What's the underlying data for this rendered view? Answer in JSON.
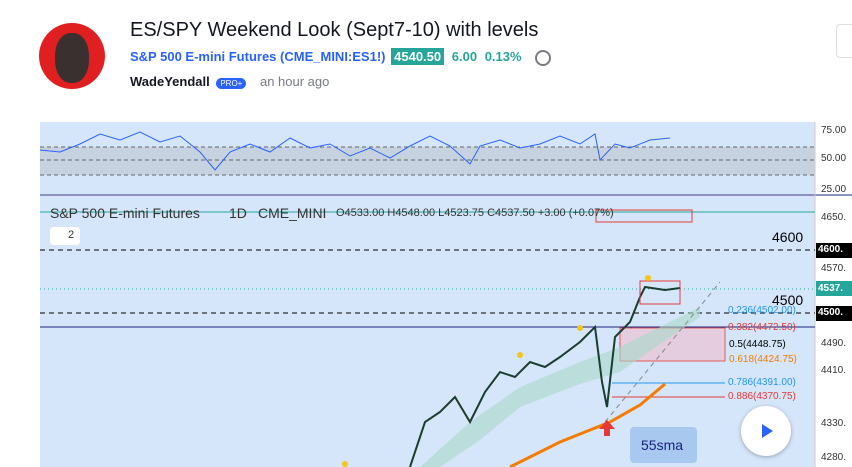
{
  "header": {
    "title": "ES/SPY Weekend Look (Sept7-10) with levels",
    "symbol_name": "S&P 500 E-mini Futures",
    "symbol_code": "CME_MINI:ES1!",
    "price": "4540.50",
    "change": "6.00",
    "change_pct": "0.13%",
    "author": "WadeYendall",
    "badge": "PRO+",
    "time": "an hour ago"
  },
  "chart": {
    "rsi_ticks": [
      "75.00",
      "50.00",
      "25.00"
    ],
    "price_ticks": [
      "4650.",
      "4570.",
      "4490.",
      "4410.",
      "4330.",
      "4280."
    ],
    "legend_name": "S&P 500 E-mini Futures",
    "legend_interval": "1D",
    "legend_exchange": "CME_MINI",
    "legend_ohlc": "O4533.00 H4548.00 L4523.75 C4537.50 +3.00 (+0.07%)",
    "collapsed_count": "2",
    "level_labels": [
      "4600",
      "4500"
    ],
    "axis_tags": [
      "4600.",
      "4537.",
      "4500."
    ],
    "fib_labels": [
      "0.236(4502.00)",
      "0.382(4472.50)",
      "0.5(4448.75)",
      "0.618(4424.75)",
      "0.786(4391.00)",
      "0.886(4370.75)"
    ],
    "annotation": "55sma"
  }
}
